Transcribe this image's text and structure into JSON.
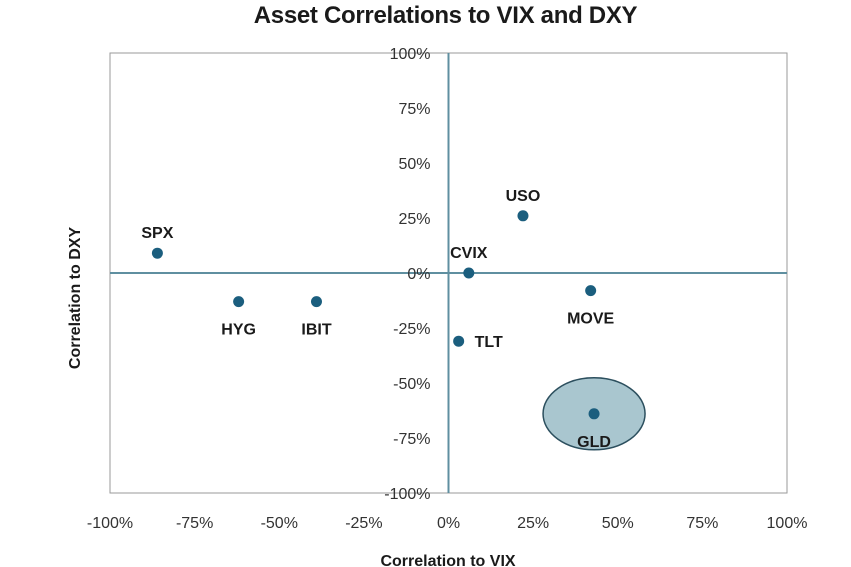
{
  "chart_data": {
    "type": "scatter",
    "title": "Asset Correlations to VIX and DXY",
    "xlabel": "Correlation to VIX",
    "ylabel": "Correlation to DXY",
    "xlim": [
      -100,
      100
    ],
    "ylim": [
      -100,
      100
    ],
    "grid": false,
    "x_ticks": [
      "-100%",
      "-75%",
      "-50%",
      "-25%",
      "0%",
      "25%",
      "50%",
      "75%",
      "100%"
    ],
    "y_ticks": [
      "100%",
      "75%",
      "50%",
      "25%",
      "0%",
      "-25%",
      "-50%",
      "-75%",
      "-100%"
    ],
    "x_tick_values": [
      -100,
      -75,
      -50,
      -25,
      0,
      25,
      50,
      75,
      100
    ],
    "y_tick_values": [
      100,
      75,
      50,
      25,
      0,
      -25,
      -50,
      -75,
      -100
    ],
    "points": [
      {
        "label": "SPX",
        "x": -86,
        "y": 9,
        "label_pos": "above"
      },
      {
        "label": "HYG",
        "x": -62,
        "y": -13,
        "label_pos": "below"
      },
      {
        "label": "IBIT",
        "x": -39,
        "y": -13,
        "label_pos": "below"
      },
      {
        "label": "USO",
        "x": 22,
        "y": 26,
        "label_pos": "above"
      },
      {
        "label": "CVIX",
        "x": 6,
        "y": 0,
        "label_pos": "above"
      },
      {
        "label": "MOVE",
        "x": 42,
        "y": -8,
        "label_pos": "below"
      },
      {
        "label": "TLT",
        "x": 3,
        "y": -31,
        "label_pos": "right"
      },
      {
        "label": "GLD",
        "x": 43,
        "y": -64,
        "label_pos": "below",
        "highlight": true
      }
    ],
    "colors": {
      "point": "#1b5e7e",
      "axis": "#5f8fa0",
      "frame": "#9a9a9a",
      "highlight_fill": "#a9c6cf",
      "highlight_stroke": "#2c4f5e",
      "text": "#1a1a1a"
    }
  }
}
